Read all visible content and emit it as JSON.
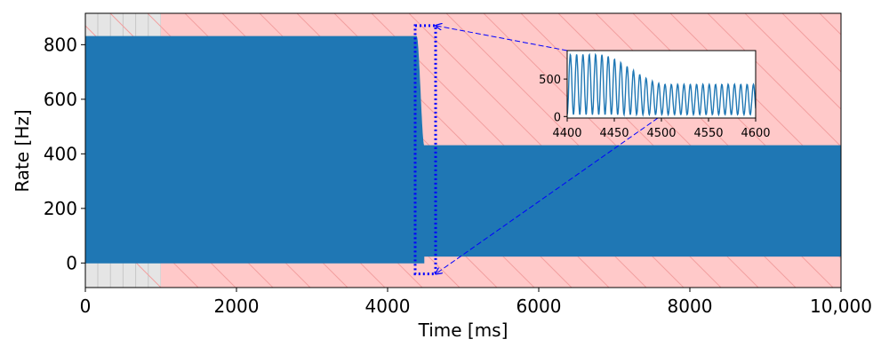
{
  "chart_data": {
    "type": "line",
    "xlabel": "Time [ms]",
    "ylabel": "Rate [Hz]",
    "xlim": [
      0,
      10000
    ],
    "ylim": [
      -90,
      915
    ],
    "x_ticks": [
      0,
      2000,
      4000,
      6000,
      8000,
      10000
    ],
    "x_tick_labels": [
      "0",
      "2000",
      "4000",
      "6000",
      "8000",
      "10,000"
    ],
    "y_ticks": [
      0,
      200,
      400,
      600,
      800
    ],
    "y_tick_labels": [
      "0",
      "200",
      "400",
      "600",
      "800"
    ],
    "grid": false,
    "legend": "none",
    "series_color": "#1f77b4",
    "shaded_regions": [
      {
        "x_start": 0,
        "x_end": 1000,
        "fill": "#e5e5e5",
        "hatch": "vertical lines",
        "hatch_color": "#c8c8c8"
      },
      {
        "x_start": 1000,
        "x_end": 10000,
        "fill": "#ffc9c9",
        "hatch": "diagonal lines",
        "hatch_color": "#f2a0a0"
      }
    ],
    "oscillation_envelope": [
      {
        "x_start": 0,
        "x_end": 4380,
        "min": 0,
        "max": 830
      },
      {
        "x_start": 4380,
        "x_end": 4480,
        "min": 0,
        "max": 830,
        "transition": "max decays from 830 toward 430"
      },
      {
        "x_start": 4480,
        "x_end": 10000,
        "min": 25,
        "max": 430
      }
    ],
    "zoom_region": {
      "x_start": 4400,
      "x_end": 4600,
      "y_min": -40,
      "y_max": 870,
      "style": "blue dotted rectangle",
      "color": "#0000ff"
    },
    "inset": {
      "xlim": [
        4400,
        4600
      ],
      "ylim": [
        -20,
        880
      ],
      "x_ticks": [
        4400,
        4450,
        4500,
        4550,
        4600
      ],
      "x_tick_labels": [
        "4400",
        "4450",
        "4500",
        "4550",
        "4600"
      ],
      "y_ticks": [
        0,
        500
      ],
      "y_tick_labels": [
        "0",
        "500"
      ],
      "oscillation_period_ms": 6.7,
      "trough": 25,
      "peak_start": 830,
      "peak_end": 430,
      "decay_start": 4432,
      "decay_end": 4505
    }
  }
}
